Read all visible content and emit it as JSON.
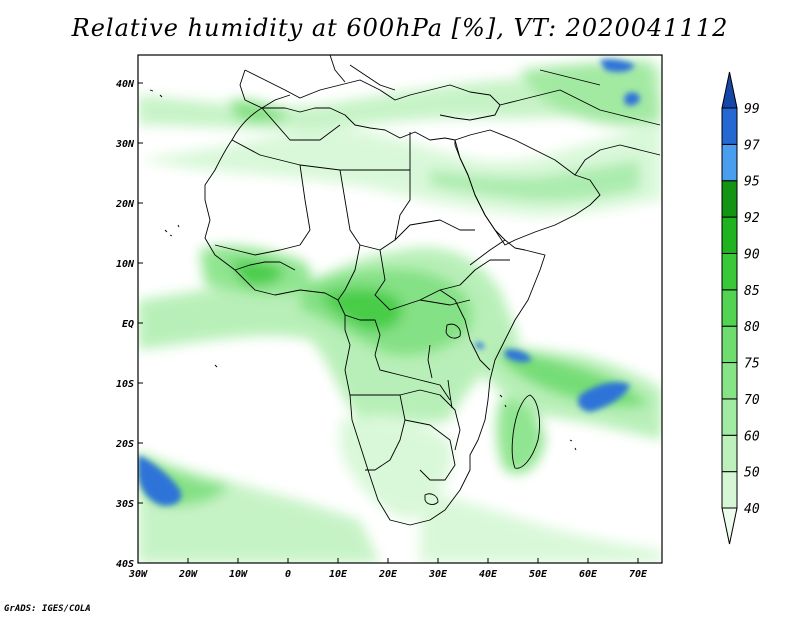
{
  "title": "Relative humidity at 600hPa [%], VT: 2020041112",
  "credit": "GrADS: IGES/COLA",
  "lon_labels": [
    "30W",
    "20W",
    "10W",
    "0",
    "10E",
    "20E",
    "30E",
    "40E",
    "50E",
    "60E",
    "70E"
  ],
  "lat_labels": [
    "40N",
    "30N",
    "20N",
    "10N",
    "EQ",
    "10S",
    "20S",
    "30S",
    "40S"
  ],
  "colorbar": {
    "labels": [
      "40",
      "50",
      "60",
      "70",
      "75",
      "80",
      "85",
      "90",
      "92",
      "95",
      "97",
      "99"
    ],
    "colors": [
      "#eefcee",
      "#d6f7d6",
      "#bcf1bc",
      "#a2eba2",
      "#86e486",
      "#6edc6e",
      "#52d352",
      "#38c838",
      "#1fb41f",
      "#139413",
      "#4a9ef0",
      "#2468d4",
      "#1646a8"
    ]
  }
}
